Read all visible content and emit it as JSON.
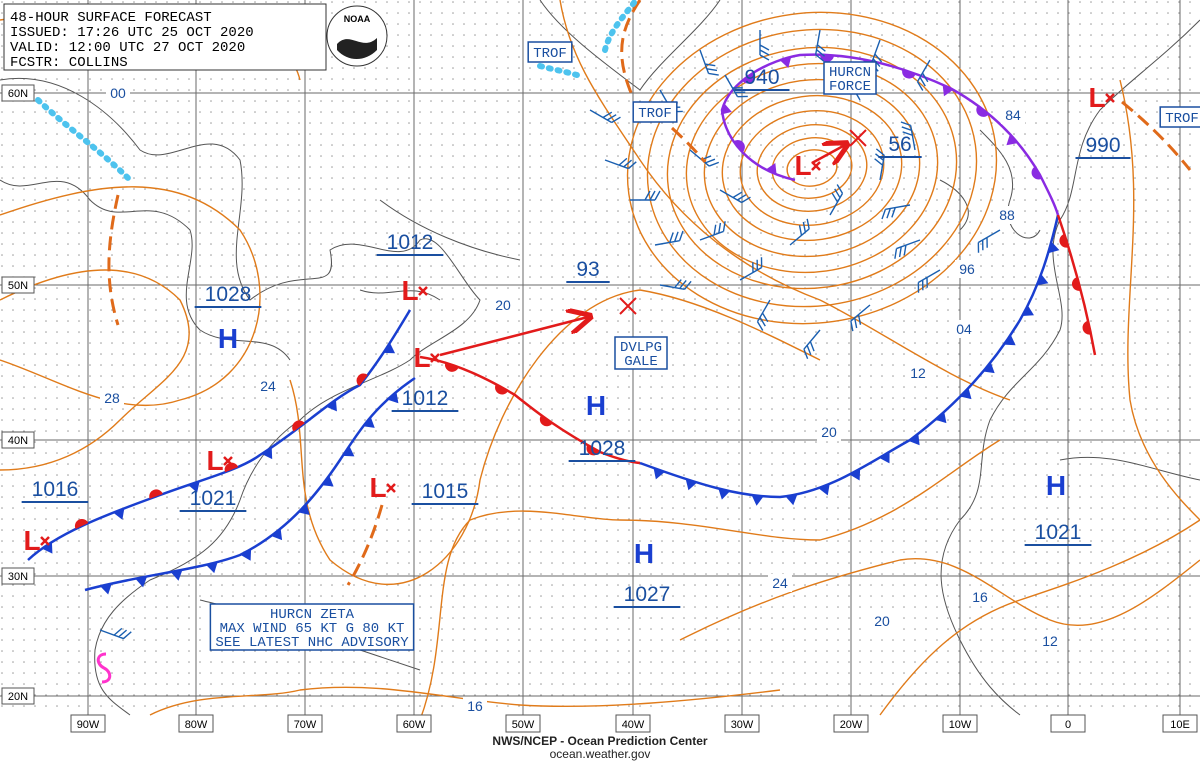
{
  "header": {
    "lines": [
      "48-HOUR SURFACE FORECAST",
      "ISSUED: 17:26 UTC 25 OCT 2020",
      "VALID:  12:00 UTC 27 OCT 2020",
      "FCSTR: COLLINS"
    ],
    "logo": "NOAA"
  },
  "lat_labels": [
    "60N",
    "50N",
    "40N",
    "30N",
    "20N"
  ],
  "lon_labels": [
    "90W",
    "80W",
    "70W",
    "60W",
    "50W",
    "40W",
    "30W",
    "20W",
    "10W",
    "0",
    "10E"
  ],
  "systems": [
    {
      "symbol": "H",
      "pressure": "1028"
    },
    {
      "symbol": "L",
      "pressure": "1012"
    },
    {
      "symbol": "L",
      "pressure": "1012"
    },
    {
      "symbol": "L",
      "pressure": "1021"
    },
    {
      "symbol": "L",
      "pressure": "1016"
    },
    {
      "symbol": "L",
      "pressure": "1015"
    },
    {
      "symbol": "H",
      "pressure": "1028"
    },
    {
      "symbol": "H",
      "pressure": "1027"
    },
    {
      "symbol": "L",
      "pressure": "940"
    },
    {
      "pressure": "56"
    },
    {
      "pressure": "93"
    },
    {
      "symbol": "L",
      "pressure": "990"
    },
    {
      "symbol": "H",
      "pressure": "1021"
    }
  ],
  "contour_labels": [
    "00",
    "28",
    "24",
    "20",
    "84",
    "88",
    "96",
    "04",
    "12",
    "20",
    "24",
    "20",
    "16",
    "12",
    "16"
  ],
  "boxed_labels": [
    {
      "lines": [
        "TROF"
      ]
    },
    {
      "lines": [
        "TROF"
      ]
    },
    {
      "lines": [
        "TROF"
      ]
    },
    {
      "lines": [
        "HURCN",
        "FORCE"
      ]
    },
    {
      "lines": [
        "DVLPG",
        "GALE"
      ]
    },
    {
      "lines": [
        "HURCN ZETA",
        "MAX WIND 65 KT G 80 KT",
        "SEE LATEST NHC ADVISORY"
      ]
    }
  ],
  "footer": {
    "lines": [
      "NWS/NCEP - Ocean Prediction Center",
      "ocean.weather.gov"
    ]
  }
}
